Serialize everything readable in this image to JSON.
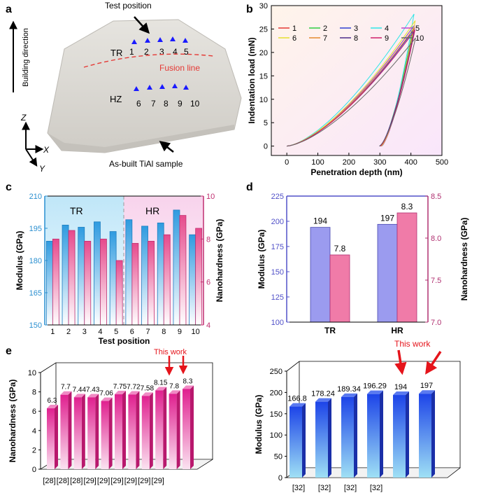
{
  "panels": {
    "a": {
      "letter": "a",
      "test_position_label": "Test position",
      "building_direction_label": "Building direction",
      "tr_label": "TR",
      "hz_label": "HZ",
      "fusion_line_label": "Fusion line",
      "sample_label": "As-built TiAl sample",
      "axis_z": "Z",
      "axis_x": "X",
      "axis_y": "Y",
      "positions_top": [
        "1",
        "2",
        "3",
        "4",
        "5"
      ],
      "positions_bottom": [
        "6",
        "7",
        "8",
        "9",
        "10"
      ],
      "colors": {
        "sample": "#d6d4cf",
        "fusion_line": "#e53935",
        "marker": "#1a1aff"
      }
    },
    "b": {
      "letter": "b"
    },
    "c": {
      "letter": "c",
      "region_left": "TR",
      "region_right": "HR"
    },
    "d": {
      "letter": "d"
    },
    "e": {
      "letter": "e",
      "callout_left": "This work",
      "callout_right": "This work"
    }
  },
  "chart_data": [
    {
      "id": "b",
      "type": "line",
      "xlabel": "Penetration depth (nm)",
      "ylabel": "Indentation load (mN)",
      "xlim": [
        -50,
        500
      ],
      "ylim": [
        -2,
        30
      ],
      "xticks": [
        "0",
        "100",
        "200",
        "300",
        "400",
        "500"
      ],
      "yticks": [
        "0",
        "5",
        "10",
        "15",
        "20",
        "25",
        "30"
      ],
      "legend_position": "top-left",
      "series": [
        {
          "name": "1",
          "color": "#e53935",
          "max_depth": 412,
          "max_load": 25.3,
          "unload_end": 303
        },
        {
          "name": "2",
          "color": "#2ecc40",
          "max_depth": 408,
          "max_load": 25.6,
          "unload_end": 301
        },
        {
          "name": "3",
          "color": "#2e3fd0",
          "max_depth": 410,
          "max_load": 24.9,
          "unload_end": 300
        },
        {
          "name": "4",
          "color": "#2ee6e6",
          "max_depth": 410,
          "max_load": 28.2,
          "unload_end": 306
        },
        {
          "name": "5",
          "color": "#c040d0",
          "max_depth": 412,
          "max_load": 25.9,
          "unload_end": 305
        },
        {
          "name": "6",
          "color": "#e6e02e",
          "max_depth": 414,
          "max_load": 26.8,
          "unload_end": 304
        },
        {
          "name": "7",
          "color": "#e58a2e",
          "max_depth": 409,
          "max_load": 25.1,
          "unload_end": 302
        },
        {
          "name": "8",
          "color": "#4a2b8a",
          "max_depth": 411,
          "max_load": 24.6,
          "unload_end": 299
        },
        {
          "name": "9",
          "color": "#d01f6a",
          "max_depth": 413,
          "max_load": 24.8,
          "unload_end": 301
        },
        {
          "name": "10",
          "color": "#666666",
          "max_depth": 415,
          "max_load": 23.1,
          "unload_end": 298
        }
      ]
    },
    {
      "id": "c",
      "type": "bar",
      "xlabel": "Test position",
      "ylabel": "Modulus (GPa)",
      "ylabel_right": "Nanohardness (GPa)",
      "categories": [
        "1",
        "2",
        "3",
        "4",
        "5",
        "6",
        "7",
        "8",
        "9",
        "10"
      ],
      "ylim": [
        150,
        210
      ],
      "yticks": [
        "150",
        "165",
        "180",
        "195",
        "210"
      ],
      "ylim_right": [
        4,
        10
      ],
      "yticks_right": [
        "4",
        "6",
        "8",
        "10"
      ],
      "series": [
        {
          "name": "Modulus",
          "axis": "left",
          "color": "#3aa3e0",
          "values": [
            189,
            196.5,
            195.5,
            198,
            193.5,
            199,
            196,
            197.5,
            203.5,
            192
          ]
        },
        {
          "name": "Nanohardness",
          "axis": "right",
          "color": "#e0588f",
          "values": [
            8.0,
            8.4,
            7.9,
            8.0,
            7.0,
            7.8,
            7.9,
            8.2,
            9.1,
            8.5
          ]
        }
      ]
    },
    {
      "id": "d",
      "type": "bar",
      "ylabel": "Modulus (GPa)",
      "ylabel_right": "Nanohardness (GPa)",
      "categories": [
        "TR",
        "HR"
      ],
      "ylim": [
        100,
        225
      ],
      "yticks": [
        "100",
        "125",
        "150",
        "175",
        "200",
        "225"
      ],
      "ylim_right": [
        7.0,
        8.5
      ],
      "yticks_right": [
        "7.0",
        "7.5",
        "8.0",
        "8.5"
      ],
      "series": [
        {
          "name": "Modulus",
          "axis": "left",
          "color": "#9b9bef",
          "values": [
            194,
            197
          ],
          "labels": [
            "194",
            "197"
          ]
        },
        {
          "name": "Nanohardness",
          "axis": "right",
          "color": "#f07ba8",
          "values": [
            7.8,
            8.3
          ],
          "labels": [
            "7.8",
            "8.3"
          ]
        }
      ]
    },
    {
      "id": "e-left",
      "type": "bar",
      "ylabel": "Nanohardness (GPa)",
      "ylim": [
        0,
        10
      ],
      "yticks": [
        "0",
        "2",
        "4",
        "6",
        "8",
        "10"
      ],
      "categories": [
        "[28]",
        "[28]",
        "[28]",
        "[29]",
        "[29]",
        "[29]",
        "[29]",
        "[29]",
        "[29]",
        "",
        ""
      ],
      "values": [
        6.3,
        7.7,
        7.44,
        7.43,
        7.06,
        7.75,
        7.72,
        7.58,
        8.15,
        7.8,
        8.3
      ],
      "labels": [
        "6.3",
        "7.7",
        "7.44",
        "7.43",
        "7.06",
        "7.75",
        "7.72",
        "7.58",
        "8.15",
        "7.8",
        "8.3"
      ]
    },
    {
      "id": "e-right",
      "type": "bar",
      "ylabel": "Modulus (GPa)",
      "ylim": [
        0,
        250
      ],
      "yticks": [
        "0",
        "50",
        "100",
        "150",
        "200",
        "250"
      ],
      "categories": [
        "[32]",
        "[32]",
        "[32]",
        "[32]",
        "",
        ""
      ],
      "values": [
        166.8,
        178.24,
        189.34,
        196.29,
        194,
        197
      ],
      "labels": [
        "166.8",
        "178.24",
        "189.34",
        "196.29",
        "194",
        "197"
      ]
    }
  ]
}
